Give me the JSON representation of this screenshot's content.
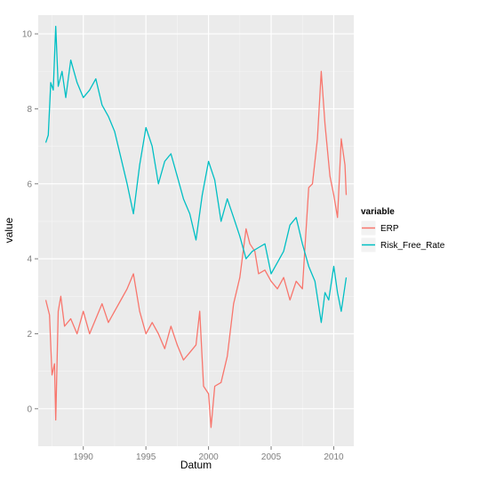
{
  "chart_data": {
    "type": "line",
    "title": "",
    "xlabel": "Datum",
    "ylabel": "value",
    "xlim": [
      1986.4,
      2011.6
    ],
    "ylim": [
      -1.0,
      10.5
    ],
    "x_ticks": [
      1990,
      1995,
      2000,
      2005,
      2010
    ],
    "x_tick_labels": [
      "1990",
      "1995",
      "2000",
      "2005",
      "2010"
    ],
    "y_ticks": [
      0,
      2,
      4,
      6,
      8,
      10
    ],
    "y_tick_labels": [
      "0",
      "2",
      "4",
      "6",
      "8",
      "10"
    ],
    "grid": true,
    "background": "#ebebeb",
    "legend": {
      "title": "variable",
      "position": "right"
    },
    "series": [
      {
        "name": "ERP",
        "color": "#f8766d",
        "x": [
          1987.0,
          1987.3,
          1987.5,
          1987.7,
          1987.8,
          1988.0,
          1988.2,
          1988.5,
          1989.0,
          1989.5,
          1990.0,
          1990.5,
          1991.0,
          1991.5,
          1992.0,
          1992.5,
          1993.0,
          1993.5,
          1994.0,
          1994.5,
          1995.0,
          1995.5,
          1996.0,
          1996.5,
          1997.0,
          1997.5,
          1998.0,
          1998.5,
          1999.0,
          1999.3,
          1999.6,
          2000.0,
          2000.2,
          2000.5,
          2001.0,
          2001.5,
          2002.0,
          2002.5,
          2003.0,
          2003.3,
          2003.7,
          2004.0,
          2004.5,
          2005.0,
          2005.5,
          2006.0,
          2006.5,
          2007.0,
          2007.5,
          2008.0,
          2008.3,
          2008.7,
          2009.0,
          2009.3,
          2009.7,
          2010.0,
          2010.3,
          2010.6,
          2010.9,
          2011.0
        ],
        "y": [
          2.9,
          2.5,
          0.9,
          1.2,
          -0.3,
          2.6,
          3.0,
          2.2,
          2.4,
          2.0,
          2.6,
          2.0,
          2.4,
          2.8,
          2.3,
          2.6,
          2.9,
          3.2,
          3.6,
          2.6,
          2.0,
          2.3,
          2.0,
          1.6,
          2.2,
          1.7,
          1.3,
          1.5,
          1.7,
          2.6,
          0.6,
          0.4,
          -0.5,
          0.6,
          0.7,
          1.4,
          2.8,
          3.5,
          4.8,
          4.4,
          4.2,
          3.6,
          3.7,
          3.4,
          3.2,
          3.5,
          2.9,
          3.4,
          3.2,
          5.9,
          6.0,
          7.2,
          9.0,
          7.6,
          6.2,
          5.7,
          5.1,
          7.2,
          6.5,
          5.7
        ]
      },
      {
        "name": "Risk_Free_Rate",
        "color": "#00bfc4",
        "x": [
          1987.0,
          1987.2,
          1987.4,
          1987.6,
          1987.8,
          1988.0,
          1988.3,
          1988.6,
          1989.0,
          1989.5,
          1990.0,
          1990.5,
          1991.0,
          1991.5,
          1992.0,
          1992.5,
          1993.0,
          1993.5,
          1994.0,
          1994.5,
          1995.0,
          1995.5,
          1996.0,
          1996.5,
          1997.0,
          1997.5,
          1998.0,
          1998.5,
          1999.0,
          1999.5,
          2000.0,
          2000.5,
          2001.0,
          2001.5,
          2002.0,
          2002.5,
          2003.0,
          2003.5,
          2004.0,
          2004.5,
          2005.0,
          2005.5,
          2006.0,
          2006.5,
          2007.0,
          2007.5,
          2008.0,
          2008.5,
          2009.0,
          2009.3,
          2009.6,
          2010.0,
          2010.3,
          2010.6,
          2011.0
        ],
        "y": [
          7.1,
          7.3,
          8.7,
          8.5,
          10.2,
          8.6,
          9.0,
          8.3,
          9.3,
          8.7,
          8.3,
          8.5,
          8.8,
          8.1,
          7.8,
          7.4,
          6.7,
          6.0,
          5.2,
          6.5,
          7.5,
          7.0,
          6.0,
          6.6,
          6.8,
          6.2,
          5.6,
          5.2,
          4.5,
          5.7,
          6.6,
          6.1,
          5.0,
          5.6,
          5.1,
          4.6,
          4.0,
          4.2,
          4.3,
          4.4,
          3.6,
          3.9,
          4.2,
          4.9,
          5.1,
          4.4,
          3.8,
          3.4,
          2.3,
          3.1,
          2.9,
          3.8,
          3.1,
          2.6,
          3.5
        ]
      }
    ]
  }
}
